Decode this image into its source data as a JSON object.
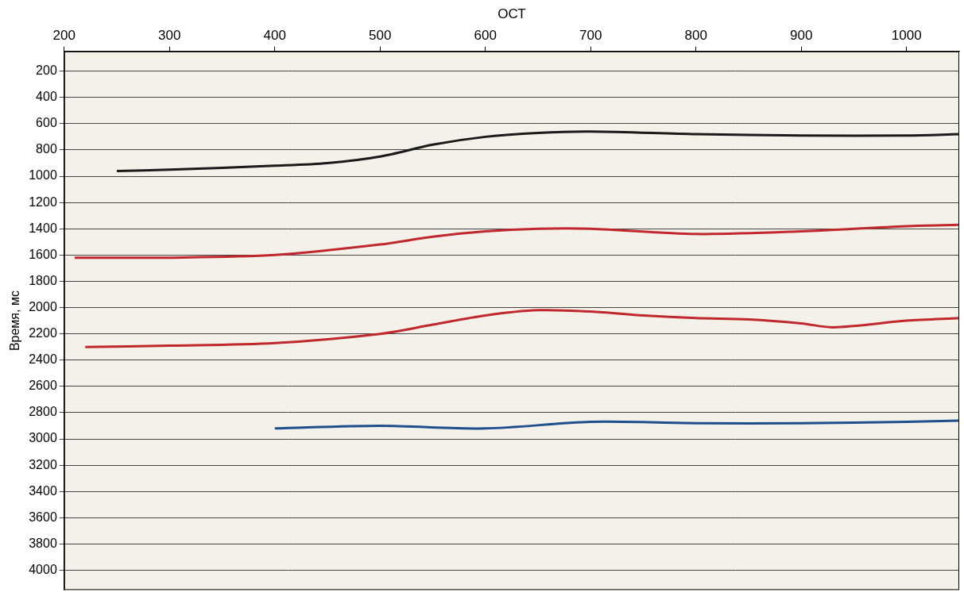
{
  "chart_data": {
    "type": "line",
    "x_label": "ОСТ",
    "y_label": "Время, мс",
    "xlim": [
      200,
      1050
    ],
    "xticks": [
      200,
      300,
      400,
      500,
      600,
      700,
      800,
      900,
      1000
    ],
    "ylim": [
      50,
      4150
    ],
    "yticks": [
      200,
      400,
      600,
      800,
      1000,
      1200,
      1400,
      1600,
      1800,
      2000,
      2200,
      2400,
      2600,
      2800,
      3000,
      3200,
      3400,
      3600,
      3800,
      4000
    ],
    "grid": "y",
    "legend": false,
    "series": [
      {
        "color": "#1a1a1a",
        "x": [
          250,
          300,
          400,
          450,
          500,
          550,
          600,
          650,
          700,
          800,
          900,
          1000,
          1050
        ],
        "values": [
          960,
          950,
          920,
          900,
          850,
          760,
          700,
          670,
          660,
          680,
          690,
          690,
          680
        ]
      },
      {
        "color": "#c0282d",
        "x": [
          210,
          300,
          400,
          500,
          550,
          600,
          650,
          700,
          800,
          900,
          1000,
          1050
        ],
        "values": [
          1620,
          1620,
          1600,
          1520,
          1460,
          1420,
          1400,
          1400,
          1440,
          1420,
          1380,
          1370
        ]
      },
      {
        "color": "#c0282d",
        "x": [
          220,
          300,
          400,
          500,
          550,
          600,
          650,
          700,
          750,
          800,
          850,
          900,
          930,
          1000,
          1050
        ],
        "values": [
          2300,
          2290,
          2270,
          2200,
          2130,
          2060,
          2020,
          2030,
          2060,
          2080,
          2090,
          2120,
          2150,
          2100,
          2080
        ]
      },
      {
        "color": "#1f4e8c",
        "x": [
          400,
          500,
          600,
          700,
          800,
          900,
          1000,
          1050
        ],
        "values": [
          2920,
          2900,
          2920,
          2870,
          2880,
          2880,
          2870,
          2860
        ]
      }
    ]
  }
}
